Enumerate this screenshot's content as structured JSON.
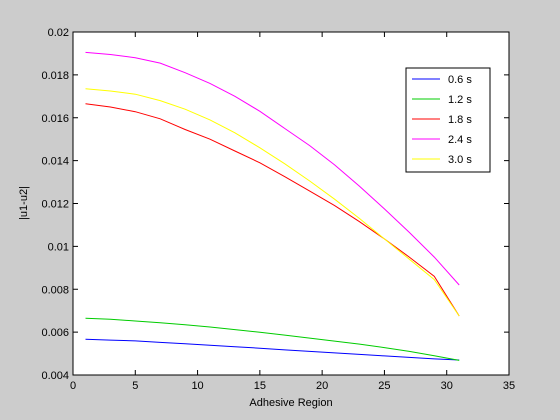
{
  "chart_data": {
    "type": "line",
    "title": "",
    "xlabel": "Adhesive Region",
    "ylabel": "|u1-u2|",
    "xlim": [
      0,
      35
    ],
    "ylim": [
      0.004,
      0.02
    ],
    "xticks": [
      0,
      5,
      10,
      15,
      20,
      25,
      30,
      35
    ],
    "yticks": [
      0.004,
      0.006,
      0.008,
      0.01,
      0.012,
      0.014,
      0.016,
      0.018,
      0.02
    ],
    "xtick_labels": [
      "0",
      "5",
      "10",
      "15",
      "20",
      "25",
      "30",
      "35"
    ],
    "ytick_labels": [
      "0.004",
      "0.006",
      "0.008",
      "0.01",
      "0.012",
      "0.014",
      "0.016",
      "0.018",
      "0.02"
    ],
    "grid": false,
    "legend_position": "top-right",
    "x": [
      1,
      3,
      5,
      7,
      9,
      11,
      13,
      15,
      17,
      19,
      21,
      23,
      25,
      27,
      29,
      31
    ],
    "series": [
      {
        "name": "0.6 s",
        "color": "#0000ff",
        "values": [
          0.00567,
          0.00563,
          0.00559,
          0.00552,
          0.00546,
          0.00539,
          0.00532,
          0.00525,
          0.00517,
          0.0051,
          0.00503,
          0.00496,
          0.00489,
          0.00482,
          0.00475,
          0.0047
        ]
      },
      {
        "name": "1.2 s",
        "color": "#00cc00",
        "values": [
          0.00665,
          0.0066,
          0.00652,
          0.00644,
          0.00634,
          0.00624,
          0.00612,
          0.00599,
          0.00586,
          0.00572,
          0.00558,
          0.00544,
          0.00528,
          0.0051,
          0.0049,
          0.00468
        ]
      },
      {
        "name": "1.8 s",
        "color": "#ff0000",
        "values": [
          0.01665,
          0.0165,
          0.01628,
          0.01595,
          0.01545,
          0.015,
          0.01445,
          0.0139,
          0.01325,
          0.01258,
          0.0119,
          0.01115,
          0.01035,
          0.0095,
          0.0086,
          0.00675
        ]
      },
      {
        "name": "2.4 s",
        "color": "#ff00ff",
        "values": [
          0.01905,
          0.01895,
          0.0188,
          0.01855,
          0.0181,
          0.0176,
          0.017,
          0.0163,
          0.0155,
          0.0147,
          0.0138,
          0.0128,
          0.01175,
          0.01065,
          0.0095,
          0.0082
        ]
      },
      {
        "name": "3.0 s",
        "color": "#ffff00",
        "values": [
          0.01735,
          0.01725,
          0.0171,
          0.0168,
          0.0164,
          0.0159,
          0.0153,
          0.0146,
          0.01385,
          0.01305,
          0.0122,
          0.0113,
          0.01035,
          0.0094,
          0.00845,
          0.00675
        ]
      }
    ]
  }
}
